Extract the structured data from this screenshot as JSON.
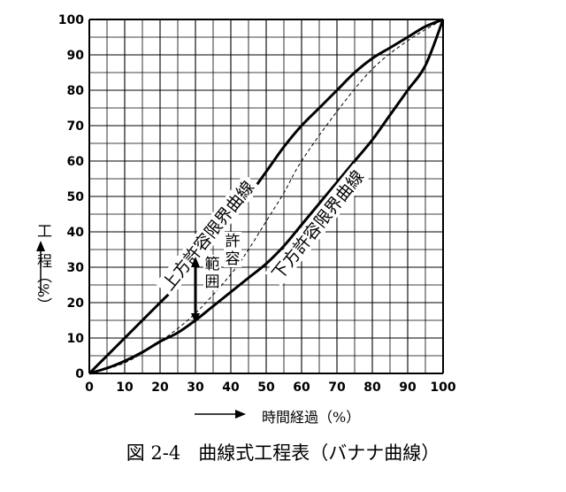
{
  "chart_data": {
    "type": "line",
    "x_ticks": [
      0,
      10,
      20,
      30,
      40,
      50,
      60,
      70,
      80,
      90,
      100
    ],
    "y_ticks": [
      0,
      10,
      20,
      30,
      40,
      50,
      60,
      70,
      80,
      90,
      100
    ],
    "xlim": [
      0,
      100
    ],
    "ylim": [
      0,
      100
    ],
    "xlabel": "時間経過（%）",
    "ylabel": "工　程（%）",
    "grid": true,
    "series": [
      {
        "name": "上方許容限界曲線",
        "style": "solid-bold",
        "x": [
          0,
          5,
          10,
          15,
          20,
          25,
          30,
          35,
          40,
          45,
          50,
          55,
          60,
          65,
          70,
          75,
          80,
          85,
          90,
          95,
          100
        ],
        "y": [
          0,
          5,
          10,
          15,
          20,
          25,
          31,
          37,
          43,
          50,
          57,
          64,
          70,
          75,
          80,
          85,
          89,
          92,
          95,
          98,
          100
        ]
      },
      {
        "name": "下方許容限界曲線",
        "style": "solid-bold",
        "x": [
          0,
          5,
          10,
          15,
          20,
          25,
          30,
          35,
          40,
          45,
          50,
          55,
          60,
          65,
          70,
          75,
          80,
          85,
          90,
          95,
          100
        ],
        "y": [
          0,
          1.5,
          3.5,
          6,
          9,
          11.5,
          15,
          19,
          23,
          27,
          31,
          36,
          42,
          48,
          54,
          60,
          66,
          73,
          80,
          87,
          100
        ]
      },
      {
        "name": "",
        "style": "dashed-thin",
        "x": [
          0,
          10,
          20,
          30,
          40,
          45,
          50,
          55,
          60,
          70,
          80,
          90,
          100
        ],
        "y": [
          0,
          3,
          9,
          17,
          28,
          35,
          43,
          51,
          60,
          74,
          86,
          94,
          100
        ]
      }
    ],
    "annotations": {
      "upper_curve_label": "上方許容限界曲線",
      "lower_curve_label": "下方許容限界曲線",
      "range_label_1": "許容",
      "range_label_2": "範囲",
      "range_arrow_x": 30,
      "range_arrow_y": [
        14,
        33
      ]
    }
  },
  "caption": {
    "figure_no": "図 2-4",
    "title": "曲線式工程表（バナナ曲線）"
  }
}
